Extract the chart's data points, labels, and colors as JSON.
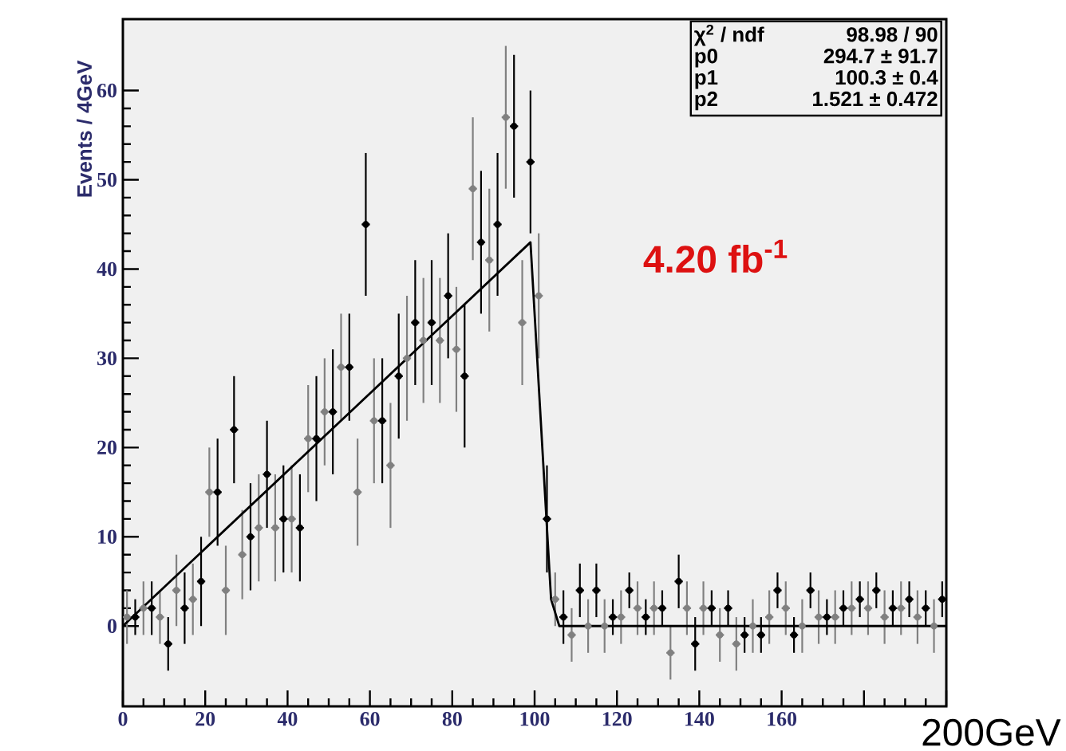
{
  "chart_data": {
    "type": "scatter",
    "ylabel": "Events / 4GeV",
    "xlim": [
      0,
      200
    ],
    "ylim": [
      -9,
      68
    ],
    "xticks": [
      0,
      20,
      40,
      60,
      80,
      100,
      120,
      140,
      160,
      {
        "value": 180,
        "label": null
      },
      {
        "value": 200,
        "label": null
      }
    ],
    "yticks": [
      0,
      10,
      20,
      30,
      40,
      50,
      60
    ],
    "series": [
      {
        "color": "#808080",
        "x": [
          1,
          5,
          9,
          13,
          17,
          21,
          25,
          29,
          33,
          37,
          41,
          45,
          49,
          53,
          57,
          61,
          65,
          69,
          73,
          77,
          81,
          85,
          89,
          93,
          97,
          101,
          105,
          109,
          113,
          117,
          121,
          125,
          129,
          133,
          137,
          141,
          145,
          149,
          153,
          157,
          161,
          165,
          169,
          173,
          177,
          181,
          185,
          189,
          193,
          197
        ],
        "values": [
          1,
          2,
          1,
          4,
          3,
          15,
          4,
          8,
          11,
          11,
          12,
          21,
          24,
          29,
          15,
          23,
          18,
          30,
          32,
          32,
          31,
          49,
          41,
          57,
          34,
          37,
          3,
          -1,
          0,
          0,
          1,
          2,
          2,
          -3,
          2,
          2,
          -1,
          -2,
          0,
          1,
          2,
          0,
          1,
          1,
          2,
          2,
          1,
          2,
          1,
          0
        ],
        "errors": [
          3,
          3,
          3,
          4,
          4,
          5,
          5,
          5,
          6,
          6,
          6,
          6,
          6,
          6,
          6,
          7,
          7,
          7,
          7,
          7,
          7,
          8,
          8,
          8,
          7,
          7,
          3,
          3,
          3,
          3,
          3,
          3,
          3,
          3,
          3,
          3,
          3,
          3,
          3,
          3,
          3,
          3,
          3,
          3,
          3,
          3,
          3,
          3,
          3,
          3
        ],
        "xerrors": [
          1,
          1,
          1,
          1,
          1,
          1,
          1,
          1,
          1,
          1,
          1,
          1,
          1,
          1,
          1,
          1,
          1,
          1,
          1,
          1,
          1,
          1,
          1,
          1,
          1,
          1,
          1,
          1,
          1,
          1,
          1,
          1,
          1,
          1,
          1,
          1,
          1,
          1,
          1,
          1,
          1,
          1,
          1,
          1,
          1,
          1,
          1,
          1,
          1,
          1
        ]
      },
      {
        "color": "#000000",
        "x": [
          3,
          7,
          11,
          15,
          19,
          23,
          27,
          31,
          35,
          39,
          43,
          47,
          51,
          55,
          59,
          63,
          67,
          71,
          75,
          79,
          83,
          87,
          91,
          95,
          99,
          103,
          107,
          111,
          115,
          119,
          123,
          127,
          131,
          135,
          139,
          143,
          147,
          151,
          155,
          159,
          163,
          167,
          171,
          175,
          179,
          183,
          187,
          191,
          195,
          199
        ],
        "values": [
          1,
          2,
          -2,
          2,
          5,
          15,
          22,
          10,
          17,
          12,
          11,
          21,
          24,
          29,
          45,
          23,
          28,
          34,
          34,
          37,
          28,
          43,
          45,
          56,
          52,
          12,
          1,
          4,
          4,
          1,
          4,
          1,
          2,
          5,
          -2,
          2,
          2,
          -1,
          -1,
          4,
          -1,
          4,
          1,
          2,
          3,
          4,
          2,
          3,
          2,
          3
        ],
        "errors": [
          2,
          3,
          3,
          4,
          5,
          6,
          6,
          6,
          6,
          6,
          6,
          7,
          7,
          6,
          8,
          7,
          7,
          7,
          7,
          7,
          8,
          8,
          8,
          8,
          8,
          6,
          3,
          3,
          3,
          2,
          2,
          2,
          2,
          3,
          3,
          2,
          2,
          2,
          2,
          2,
          2,
          2,
          2,
          2,
          2,
          2,
          2,
          2,
          2,
          2
        ],
        "xerrors": [
          1,
          1,
          1,
          1,
          1,
          1,
          1,
          1,
          1,
          1,
          1,
          1,
          1,
          1,
          1,
          1,
          1,
          1,
          1,
          1,
          1,
          1,
          1,
          1,
          1,
          1,
          1,
          1,
          1,
          1,
          1,
          1,
          1,
          1,
          1,
          1,
          1,
          1,
          1,
          1,
          1,
          1,
          1,
          1,
          1,
          1,
          1,
          1,
          1,
          1
        ]
      },
      {
        "type": "line",
        "color": "#000000",
        "x": [
          0,
          99,
          104,
          106,
          200
        ],
        "values": [
          0,
          43,
          3,
          0,
          0
        ]
      }
    ],
    "annotations": [
      "χ$^{2}$ / ndf",
      "98.98 / 90",
      "p0",
      "294.7 ± 91.7",
      "p1",
      "100.3 ± 0.4",
      "p2",
      "1.521 ± 0.472",
      "4.20 fb$^{-1}$",
      "200GeV"
    ]
  }
}
